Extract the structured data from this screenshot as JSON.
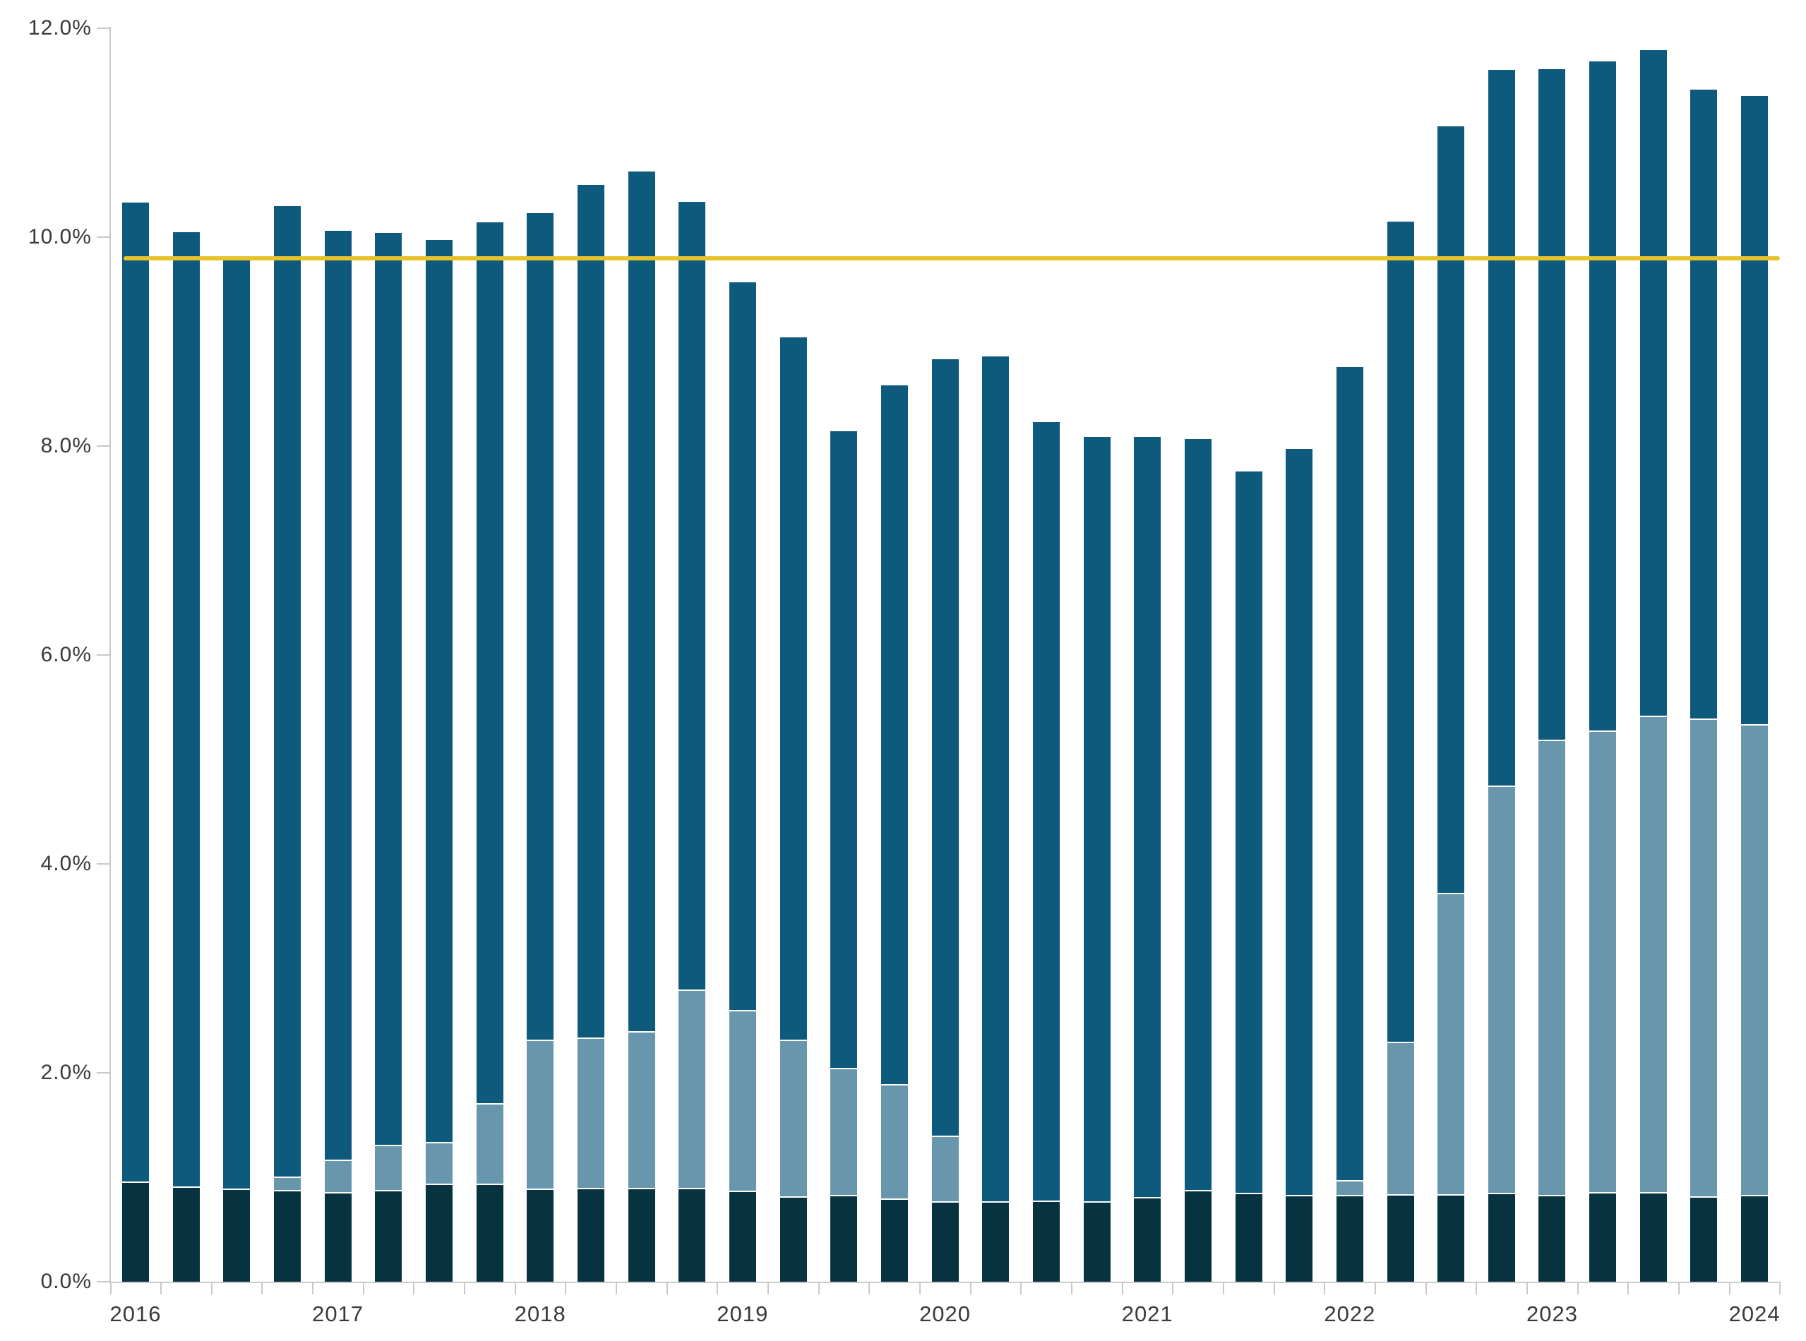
{
  "chart_data": {
    "type": "bar",
    "stacked": true,
    "title": "",
    "legend": "none",
    "grid": "off",
    "ylim": [
      0,
      12
    ],
    "y_tick_labels": [
      "0.0%",
      "2.0%",
      "4.0%",
      "6.0%",
      "8.0%",
      "10.0%",
      "12.0%"
    ],
    "x_tick_labels": [
      "2016",
      "2017",
      "2018",
      "2019",
      "2020",
      "2021",
      "2022",
      "2023",
      "2024"
    ],
    "categories": [
      "2016 Q1",
      "2016 Q2",
      "2016 Q3",
      "2016 Q4",
      "2017 Q1",
      "2017 Q2",
      "2017 Q3",
      "2017 Q4",
      "2018 Q1",
      "2018 Q2",
      "2018 Q3",
      "2018 Q4",
      "2019 Q1",
      "2019 Q2",
      "2019 Q3",
      "2019 Q4",
      "2020 Q1",
      "2020 Q2",
      "2020 Q3",
      "2020 Q4",
      "2021 Q1",
      "2021 Q2",
      "2021 Q3",
      "2021 Q4",
      "2022 Q1",
      "2022 Q2",
      "2022 Q3",
      "2022 Q4",
      "2023 Q1",
      "2023 Q2",
      "2023 Q3",
      "2023 Q4",
      "2024 Q1"
    ],
    "series": [
      {
        "name": "bottom-dark-segment",
        "color": "#073340",
        "values": [
          0.96,
          0.91,
          0.89,
          0.88,
          0.86,
          0.88,
          0.94,
          0.94,
          0.89,
          0.9,
          0.9,
          0.9,
          0.87,
          0.82,
          0.83,
          0.8,
          0.77,
          0.77,
          0.78,
          0.77,
          0.81,
          0.88,
          0.85,
          0.83,
          0.83,
          0.84,
          0.84,
          0.85,
          0.83,
          0.86,
          0.86,
          0.82,
          0.83
        ]
      },
      {
        "name": "middle-steel-blue-segment",
        "color": "#6896AD",
        "values": [
          0,
          0,
          0,
          0.13,
          0.31,
          0.43,
          0.4,
          0.77,
          1.43,
          1.44,
          1.5,
          1.9,
          1.73,
          1.5,
          1.22,
          1.09,
          0.63,
          0,
          0,
          0,
          0,
          0,
          0,
          0,
          0.14,
          1.46,
          2.88,
          3.9,
          4.36,
          4.42,
          4.56,
          4.57,
          4.51
        ]
      },
      {
        "name": "top-ocean-blue-segment",
        "color": "#0E5A7D",
        "values": [
          9.37,
          9.14,
          8.9,
          9.29,
          8.89,
          8.73,
          8.63,
          8.43,
          7.91,
          8.16,
          8.23,
          7.54,
          6.97,
          6.72,
          6.09,
          6.69,
          7.43,
          8.09,
          7.45,
          7.32,
          7.28,
          7.19,
          6.91,
          7.14,
          7.79,
          7.85,
          7.34,
          6.85,
          6.42,
          6.4,
          6.37,
          6.02,
          6.01
        ]
      }
    ],
    "totals": [
      10.33,
      10.05,
      9.79,
      10.3,
      10.06,
      10.04,
      9.97,
      10.14,
      10.23,
      10.5,
      10.63,
      10.34,
      9.57,
      9.04,
      8.14,
      8.58,
      8.83,
      8.86,
      8.23,
      8.09,
      8.09,
      8.07,
      7.76,
      7.97,
      8.76,
      10.15,
      11.06,
      11.6,
      11.61,
      11.68,
      11.79,
      11.41,
      11.35
    ],
    "reference_line": {
      "value": 9.8,
      "color": "#E6C22B"
    }
  },
  "colors": {
    "axis": "#c9c9c9",
    "tick_text": "#3a3a3a",
    "background": "#ffffff"
  }
}
